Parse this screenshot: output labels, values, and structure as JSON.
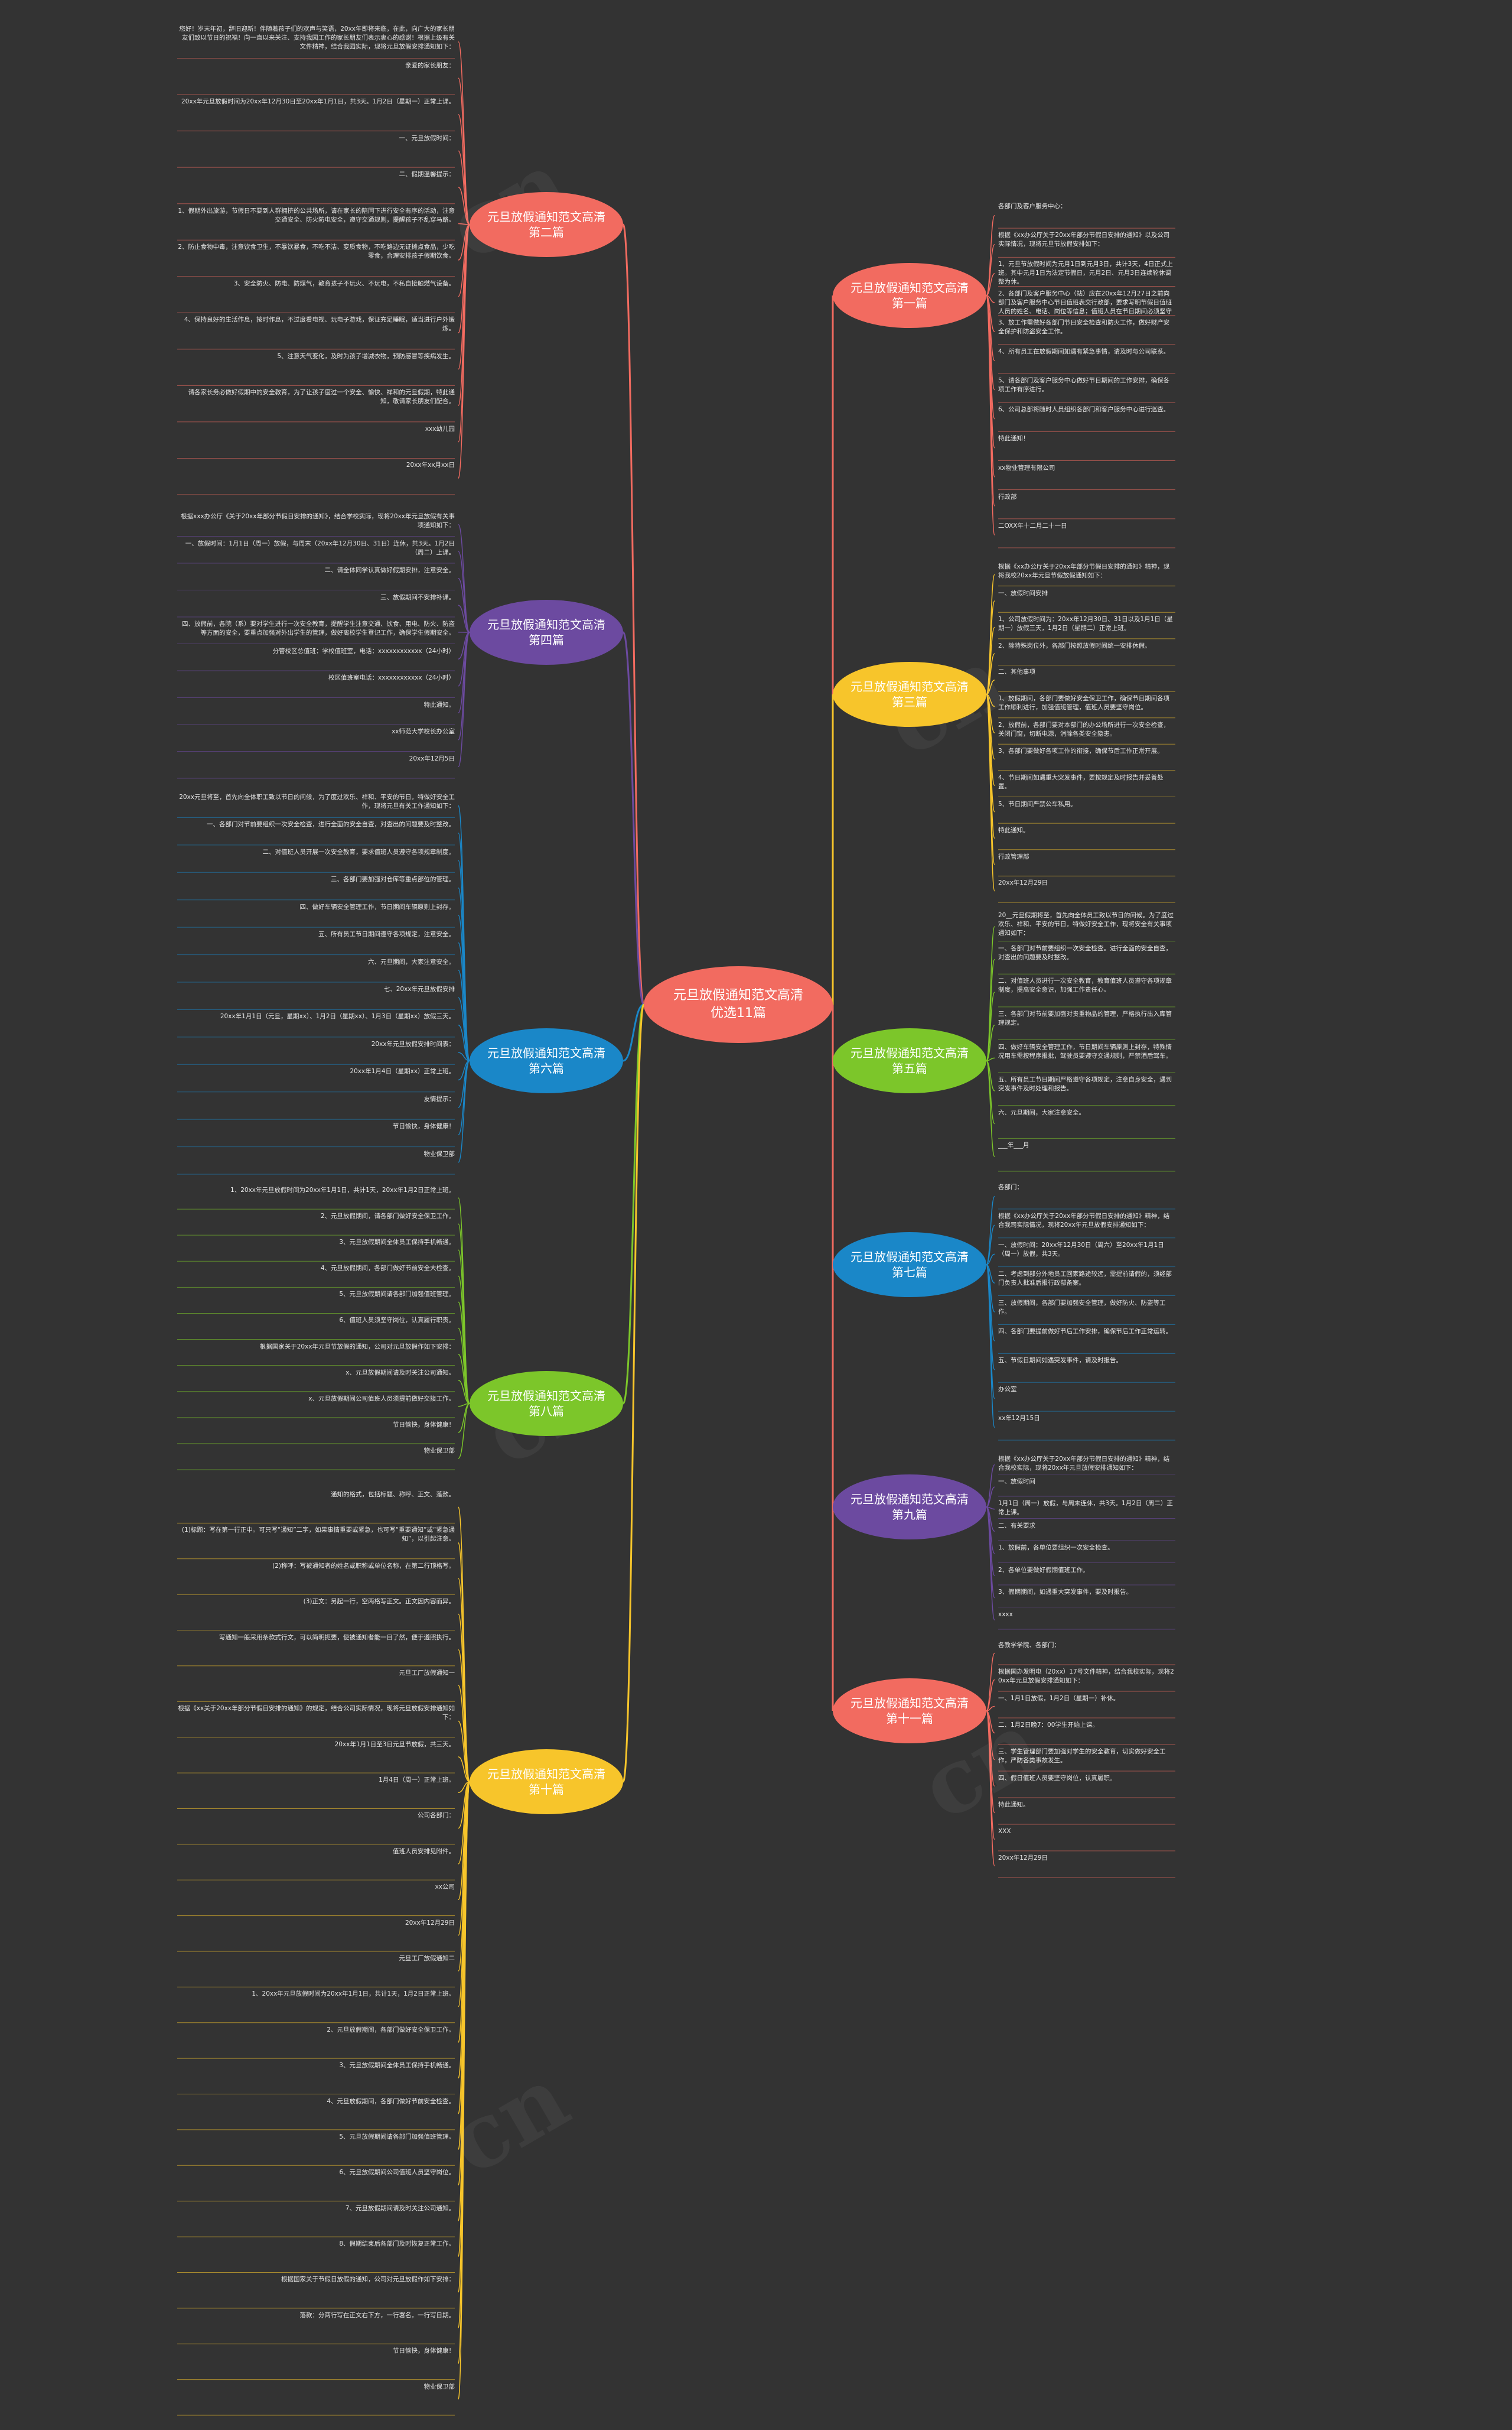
{
  "center": {
    "title": "元旦放假通知范文高清优选11篇",
    "color": "#f26b60"
  },
  "watermark": "cn",
  "branches": [
    {
      "id": "b1",
      "title": "元旦放假通知范文高清 第一篇",
      "color": "#f26b60",
      "side": "right"
    },
    {
      "id": "b2",
      "title": "元旦放假通知范文高清 第二篇",
      "color": "#f26b60",
      "side": "left"
    },
    {
      "id": "b3",
      "title": "元旦放假通知范文高清 第三篇",
      "color": "#f7c52b",
      "side": "right"
    },
    {
      "id": "b4",
      "title": "元旦放假通知范文高清 第四篇",
      "color": "#6c4aa0",
      "side": "left"
    },
    {
      "id": "b5",
      "title": "元旦放假通知范文高清 第五篇",
      "color": "#7cc62a",
      "side": "right"
    },
    {
      "id": "b6",
      "title": "元旦放假通知范文高清 第六篇",
      "color": "#1a87c8",
      "side": "left"
    },
    {
      "id": "b7",
      "title": "元旦放假通知范文高清 第七篇",
      "color": "#1a87c8",
      "side": "right"
    },
    {
      "id": "b8",
      "title": "元旦放假通知范文高清 第八篇",
      "color": "#7cc62a",
      "side": "left"
    },
    {
      "id": "b9",
      "title": "元旦放假通知范文高清 第九篇",
      "color": "#6c4aa0",
      "side": "right"
    },
    {
      "id": "b10",
      "title": "元旦放假通知范文高清 第十篇",
      "color": "#f7c52b",
      "side": "left"
    },
    {
      "id": "b11",
      "title": "元旦放假通知范文高清 第十一篇",
      "color": "#f26b60",
      "side": "right"
    }
  ],
  "leaves": [
    {
      "b": "b1",
      "t": "各部门及客户服务中心："
    },
    {
      "b": "b1",
      "t": "根据《xx办公厅关于20xx年部分节假日安排的通知》以及公司实际情况，现将元旦节放假安排如下："
    },
    {
      "b": "b1",
      "t": "1、元旦节放假时间为元月1日到元月3日，共计3天，4日正式上班。其中元月1日为法定节假日，元月2日、元月3日连续轮休调整为休。"
    },
    {
      "b": "b1",
      "t": "2、各部门及客户服务中心（站）应在20xx年12月27日之前向部门及客户服务中心节日值班表交行政部，要求写明节假日值班人员的姓名、电话、岗位等信息；值班人员在节日期间必须坚守岗位，保证通讯畅通，发现问题及时处理并报告。"
    },
    {
      "b": "b1",
      "t": "3、放工作需做好各部门节日安全检查和防火工作，做好财产安全保护和防盗安全工作。"
    },
    {
      "b": "b1",
      "t": "4、所有员工在放假期间如遇有紧急事情，请及时与公司联系。"
    },
    {
      "b": "b1",
      "t": "5、请各部门及客户服务中心做好节日期间的工作安排，确保各项工作有序进行。"
    },
    {
      "b": "b1",
      "t": "6、公司总部将随时人员组织各部门和客户服务中心进行巡查。"
    },
    {
      "b": "b1",
      "t": "特此通知！"
    },
    {
      "b": "b1",
      "t": "xx物业管理有限公司"
    },
    {
      "b": "b1",
      "t": "行政部"
    },
    {
      "b": "b1",
      "t": "二OXX年十二月二十一日"
    },
    {
      "b": "b2",
      "t": "您好！岁末年初，辞旧迎新！伴随着孩子们的欢声与笑语，20xx年即将来临，在此，向广大的家长朋友们致以节日的祝福！向一直以来关注、支持我园工作的家长朋友们表示衷心的感谢！根据上级有关文件精神，结合我园实际，现将元旦放假安排通知如下："
    },
    {
      "b": "b2",
      "t": "亲爱的家长朋友："
    },
    {
      "b": "b2",
      "t": "20xx年元旦放假时间为20xx年12月30日至20xx年1月1日，共3天。1月2日（星期一）正常上课。"
    },
    {
      "b": "b2",
      "t": "一、元旦放假时间："
    },
    {
      "b": "b2",
      "t": "二、假期温馨提示："
    },
    {
      "b": "b2",
      "t": "1、假期外出旅游，节假日不要到人群拥挤的公共场所，请在家长的陪同下进行安全有序的活动，注意交通安全、防火防电安全，遵守交通规则，提醒孩子不乱穿马路。"
    },
    {
      "b": "b2",
      "t": "2、防止食物中毒，注意饮食卫生，不暴饮暴食，不吃不洁、变质食物，不吃路边无证摊点食品，少吃零食，合理安排孩子假期饮食。"
    },
    {
      "b": "b2",
      "t": "3、安全防火、防电、防煤气，教育孩子不玩火、不玩电，不私自接触燃气设备。"
    },
    {
      "b": "b2",
      "t": "4、保持良好的生活作息，按时作息，不过度看电视、玩电子游戏，保证充足睡眠，适当进行户外锻炼。"
    },
    {
      "b": "b2",
      "t": "5、注意天气变化，及时为孩子增减衣物，预防感冒等疾病发生。"
    },
    {
      "b": "b2",
      "t": "请各家长务必做好假期中的安全教育，为了让孩子度过一个安全、愉快、祥和的元旦假期，特此通知，敬请家长朋友们配合。"
    },
    {
      "b": "b2",
      "t": "xxx幼儿园"
    },
    {
      "b": "b2",
      "t": "20xx年xx月xx日"
    },
    {
      "b": "b3",
      "t": "根据《xx办公厅关于20xx年部分节假日安排的通知》精神，现将我校20xx年元旦节假放假通知如下："
    },
    {
      "b": "b3",
      "t": "一、放假时间安排"
    },
    {
      "b": "b3",
      "t": "1、公司放假时间为：20xx年12月30日、31日以及1月1日（星期一）放假三天，1月2日（星期二）正常上班。"
    },
    {
      "b": "b3",
      "t": "2、除特殊岗位外，各部门按照放假时间统一安排休假。"
    },
    {
      "b": "b3",
      "t": "二、其他事项"
    },
    {
      "b": "b3",
      "t": "1、放假期间，各部门要做好安全保卫工作，确保节日期间各项工作顺利进行，加强值班管理，值班人员要坚守岗位。"
    },
    {
      "b": "b3",
      "t": "2、放假前，各部门要对本部门的办公场所进行一次安全检查，关闭门窗，切断电源，消除各类安全隐患。"
    },
    {
      "b": "b3",
      "t": "3、各部门要做好各项工作的衔接，确保节后工作正常开展。"
    },
    {
      "b": "b3",
      "t": "4、节日期间如遇重大突发事件，要按规定及时报告并妥善处置。"
    },
    {
      "b": "b3",
      "t": "5、节日期间严禁公车私用。"
    },
    {
      "b": "b3",
      "t": "特此通知。"
    },
    {
      "b": "b3",
      "t": "行政管理部"
    },
    {
      "b": "b3",
      "t": "20xx年12月29日"
    },
    {
      "b": "b4",
      "t": "根据xxx办公厅《关于20xx年部分节假日安排的通知》，结合学校实际，现将20xx年元旦放假有关事项通知如下："
    },
    {
      "b": "b4",
      "t": "一、放假时间：1月1日（周一）放假，与周末（20xx年12月30日、31日）连休，共3天。1月2日（周二）上课。"
    },
    {
      "b": "b4",
      "t": "二、请全体同学认真做好假期安排，注意安全。"
    },
    {
      "b": "b4",
      "t": "三、放假期间不安排补课。"
    },
    {
      "b": "b4",
      "t": "四、放假前，各院（系）要对学生进行一次安全教育，提醒学生注意交通、饮食、用电、防火、防盗等方面的安全，要重点加强对外出学生的管理，做好离校学生登记工作，确保学生假期安全。"
    },
    {
      "b": "b4",
      "t": "分管校区总值班：学校值班室，电话：xxxxxxxxxxxx（24小时）"
    },
    {
      "b": "b4",
      "t": "校区值班室电话：xxxxxxxxxxxx（24小时）"
    },
    {
      "b": "b4",
      "t": "特此通知。"
    },
    {
      "b": "b4",
      "t": "xx师范大学校长办公室"
    },
    {
      "b": "b4",
      "t": "20xx年12月5日"
    },
    {
      "b": "b5",
      "t": "20__元旦假期将至，首先向全体员工致以节日的问候。为了度过欢乐、祥和、平安的节日，特做好安全工作，现将安全有关事项通知如下："
    },
    {
      "b": "b5",
      "t": "一、各部门对节前要组织一次安全检查。进行全面的安全自查，对查出的问题要及时整改。"
    },
    {
      "b": "b5",
      "t": "二、对值班人员进行一次安全教育，教育值班人员遵守各项规章制度，提高安全意识，加强工作责任心。"
    },
    {
      "b": "b5",
      "t": "三、各部门对节前要加强对贵重物品的管理，严格执行出入库管理规定。"
    },
    {
      "b": "b5",
      "t": "四、做好车辆安全管理工作，节日期间车辆原则上封存，特殊情况用车需按程序报批，驾驶员要遵守交通规则，严禁酒后驾车。"
    },
    {
      "b": "b5",
      "t": "五、所有员工节日期间严格遵守各项规定，注意自身安全，遇到突发事件及时处理和报告。"
    },
    {
      "b": "b5",
      "t": "六、元旦期间，大家注意安全。"
    },
    {
      "b": "b5",
      "t": "___年___月"
    },
    {
      "b": "b6",
      "t": "20xx元旦将至，首先向全体职工致以节日的问候，为了度过欢乐、祥和、平安的节日，特做好安全工作，现将元旦有关工作通知如下："
    },
    {
      "b": "b6",
      "t": "一、各部门对节前要组织一次安全检查，进行全面的安全自查，对查出的问题要及时整改。"
    },
    {
      "b": "b6",
      "t": "二、对值班人员开展一次安全教育，要求值班人员遵守各项规章制度。"
    },
    {
      "b": "b6",
      "t": "三、各部门要加强对仓库等重点部位的管理。"
    },
    {
      "b": "b6",
      "t": "四、做好车辆安全管理工作，节日期间车辆原则上封存。"
    },
    {
      "b": "b6",
      "t": "五、所有员工节日期间遵守各项规定，注意安全。"
    },
    {
      "b": "b6",
      "t": "六、元旦期间，大家注意安全。"
    },
    {
      "b": "b6",
      "t": "七、20xx年元旦放假安排"
    },
    {
      "b": "b6",
      "t": "20xx年1月1日（元旦，星期xx）、1月2日（星期xx）、1月3日（星期xx）放假三天。"
    },
    {
      "b": "b6",
      "t": "20xx年元旦放假安排时间表："
    },
    {
      "b": "b6",
      "t": "20xx年1月4日（星期xx）正常上班。"
    },
    {
      "b": "b6",
      "t": "友情提示："
    },
    {
      "b": "b6",
      "t": "节日愉快，身体健康！"
    },
    {
      "b": "b6",
      "t": "物业保卫部"
    },
    {
      "b": "b7",
      "t": "各部门："
    },
    {
      "b": "b7",
      "t": "根据《xx办公厅关于20xx年部分节假日安排的通知》精神，结合我司实际情况，现将20xx年元旦放假安排通知如下："
    },
    {
      "b": "b7",
      "t": "一、放假时间：20xx年12月30日（周六）至20xx年1月1日（周一）放假，共3天。"
    },
    {
      "b": "b7",
      "t": "二、考虑到部分外地员工回家路途较远，需提前请假的，须经部门负责人批准后报行政部备案。"
    },
    {
      "b": "b7",
      "t": "三、放假期间，各部门要加强安全管理，做好防火、防盗等工作。"
    },
    {
      "b": "b7",
      "t": "四、各部门要提前做好节后工作安排，确保节后工作正常运转。"
    },
    {
      "b": "b7",
      "t": "五、节假日期间如遇突发事件，请及时报告。"
    },
    {
      "b": "b7",
      "t": "办公室"
    },
    {
      "b": "b7",
      "t": "xx年12月15日"
    },
    {
      "b": "b8",
      "t": "1、20xx年元旦放假时间为20xx年1月1日，共计1天，20xx年1月2日正常上班。"
    },
    {
      "b": "b8",
      "t": "2、元旦放假期间，请各部门做好安全保卫工作。"
    },
    {
      "b": "b8",
      "t": "3、元旦放假期间全体员工保持手机畅通。"
    },
    {
      "b": "b8",
      "t": "4、元旦放假期间，各部门做好节前安全大检查。"
    },
    {
      "b": "b8",
      "t": "5、元旦放假期间请各部门加强值班管理。"
    },
    {
      "b": "b8",
      "t": "6、值班人员须坚守岗位，认真履行职责。"
    },
    {
      "b": "b8",
      "t": "根据国家关于20xx年元旦节放假的通知，公司对元旦放假作如下安排："
    },
    {
      "b": "b8",
      "t": "x、元旦放假期间请及时关注公司通知。"
    },
    {
      "b": "b8",
      "t": "x、元旦放假期间公司值班人员须提前做好交接工作。"
    },
    {
      "b": "b8",
      "t": "节日愉快，身体健康！"
    },
    {
      "b": "b8",
      "t": "物业保卫部"
    },
    {
      "b": "b9",
      "t": "根据《xx办公厅关于20xx年部分节假日安排的通知》精神，结合我校实际，现将20xx年元旦放假安排通知如下："
    },
    {
      "b": "b9",
      "t": "一、放假时间"
    },
    {
      "b": "b9",
      "t": "1月1日（周一）放假，与周末连休，共3天。1月2日（周二）正常上课。"
    },
    {
      "b": "b9",
      "t": "二、有关要求"
    },
    {
      "b": "b9",
      "t": "1、放假前，各单位要组织一次安全检查。"
    },
    {
      "b": "b9",
      "t": "2、各单位要做好假期值班工作。"
    },
    {
      "b": "b9",
      "t": "3、假期期间，如遇重大突发事件，要及时报告。"
    },
    {
      "b": "b9",
      "t": "xxxx"
    },
    {
      "b": "b10",
      "t": "通知的格式，包括标题、称呼、正文、落款。"
    },
    {
      "b": "b10",
      "t": "(1)标题：写在第一行正中。可只写“通知”二字，如果事情重要或紧急，也可写“重要通知”或“紧急通知”，以引起注意。"
    },
    {
      "b": "b10",
      "t": "(2)称呼：写被通知者的姓名或职称或单位名称，在第二行顶格写。"
    },
    {
      "b": "b10",
      "t": "(3)正文：另起一行，空两格写正文。正文因内容而异。"
    },
    {
      "b": "b10",
      "t": "写通知一般采用条款式行文，可以简明扼要，使被通知者能一目了然，便于遵照执行。"
    },
    {
      "b": "b10",
      "t": "元旦工厂放假通知一"
    },
    {
      "b": "b10",
      "t": "根据《xx关于20xx年部分节假日安排的通知》的规定，结合公司实际情况，现将元旦放假安排通知如下："
    },
    {
      "b": "b10",
      "t": "20xx年1月1日至3日元旦节放假，共三天。"
    },
    {
      "b": "b10",
      "t": "1月4日（周一）正常上班。"
    },
    {
      "b": "b10",
      "t": "公司各部门："
    },
    {
      "b": "b10",
      "t": "值班人员安排见附件。"
    },
    {
      "b": "b10",
      "t": "xx公司"
    },
    {
      "b": "b10",
      "t": "20xx年12月29日"
    },
    {
      "b": "b10",
      "t": "元旦工厂放假通知二"
    },
    {
      "b": "b10",
      "t": "1、20xx年元旦放假时间为20xx年1月1日，共计1天，1月2日正常上班。"
    },
    {
      "b": "b10",
      "t": "2、元旦放假期间，各部门做好安全保卫工作。"
    },
    {
      "b": "b10",
      "t": "3、元旦放假期间全体员工保持手机畅通。"
    },
    {
      "b": "b10",
      "t": "4、元旦放假期间，各部门做好节前安全检查。"
    },
    {
      "b": "b10",
      "t": "5、元旦放假期间请各部门加强值班管理。"
    },
    {
      "b": "b10",
      "t": "6、元旦放假期间公司值班人员坚守岗位。"
    },
    {
      "b": "b10",
      "t": "7、元旦放假期间请及时关注公司通知。"
    },
    {
      "b": "b10",
      "t": "8、假期结束后各部门及时恢复正常工作。"
    },
    {
      "b": "b10",
      "t": "根据国家关于节假日放假的通知，公司对元旦放假作如下安排："
    },
    {
      "b": "b10",
      "t": "落款：分两行写在正文右下方，一行署名，一行写日期。"
    },
    {
      "b": "b10",
      "t": "节日愉快，身体健康！"
    },
    {
      "b": "b10",
      "t": "物业保卫部"
    },
    {
      "b": "b11",
      "t": "各教学学院、各部门："
    },
    {
      "b": "b11",
      "t": "根据国办发明电（20xx）17号文件精神，结合我校实际，现将20xx年元旦放假安排通知如下："
    },
    {
      "b": "b11",
      "t": "一、1月1日放假，1月2日（星期一）补休。"
    },
    {
      "b": "b11",
      "t": "二、1月2日晚7：00学生开始上课。"
    },
    {
      "b": "b11",
      "t": "三、学生管理部门要加强对学生的安全教育，切实做好安全工作，严防各类事故发生。"
    },
    {
      "b": "b11",
      "t": "四、假日值班人员要坚守岗位，认真履职。"
    },
    {
      "b": "b11",
      "t": "特此通知。"
    },
    {
      "b": "b11",
      "t": "XXX"
    },
    {
      "b": "b11",
      "t": "20xx年12月29日"
    }
  ]
}
